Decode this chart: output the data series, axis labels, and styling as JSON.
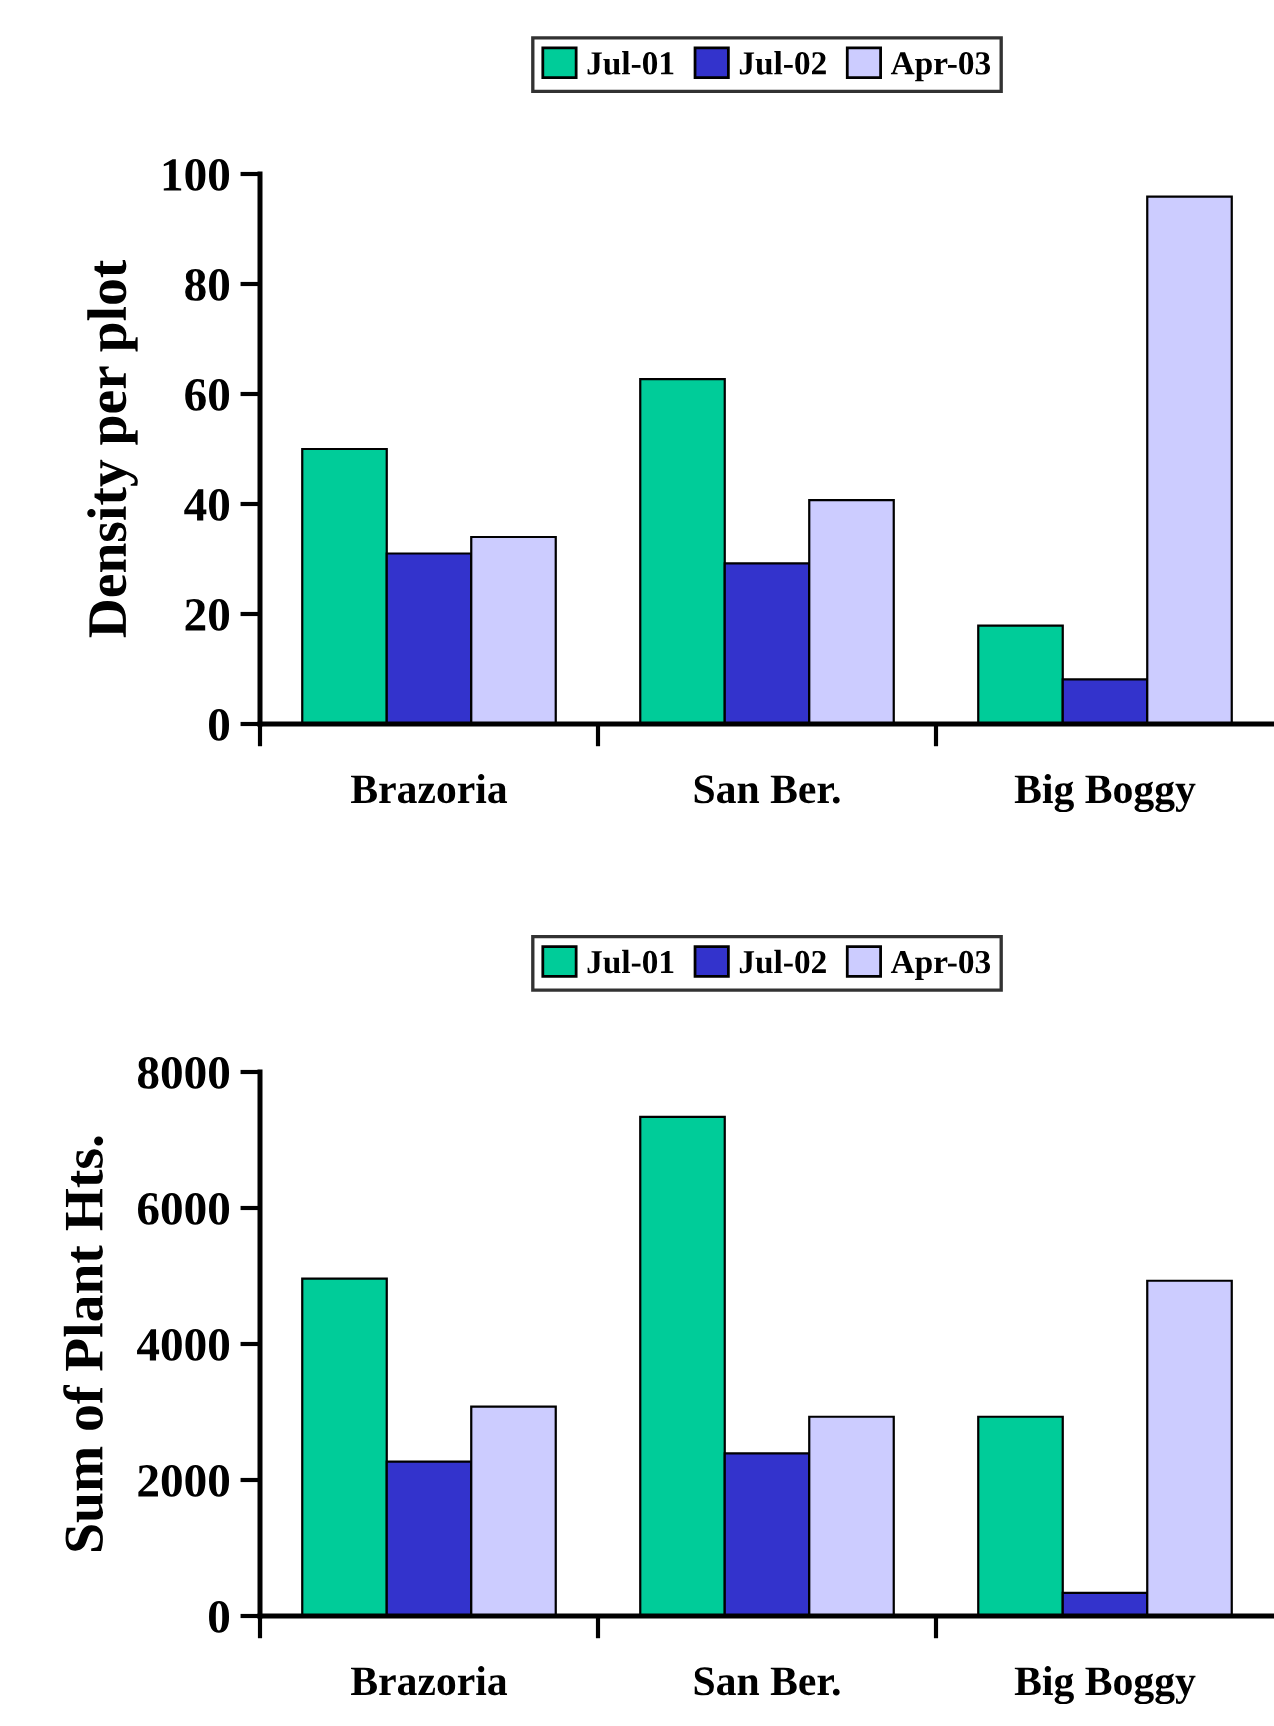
{
  "chart_data": [
    {
      "type": "bar",
      "ylabel": "Density per plot",
      "categories": [
        "Brazoria",
        "San Ber.",
        "Big Boggy"
      ],
      "series": [
        {
          "name": "Jul-01",
          "color": "#00cc99",
          "values": [
            50,
            62.7,
            17.9
          ]
        },
        {
          "name": "Jul-02",
          "color": "#3333cc",
          "values": [
            31,
            29.2,
            8.1
          ]
        },
        {
          "name": "Apr-03",
          "color": "#ccccff",
          "values": [
            34,
            40.7,
            95.9
          ]
        }
      ],
      "ylim": [
        0,
        100
      ],
      "yticks": [
        0,
        20,
        40,
        60,
        80,
        100
      ],
      "grid": false,
      "legend": "top"
    },
    {
      "type": "bar",
      "ylabel": "Sum of Plant Hts.",
      "categories": [
        "Brazoria",
        "San Ber.",
        "Big Boggy"
      ],
      "series": [
        {
          "name": "Jul-01",
          "color": "#00cc99",
          "values": [
            4960,
            7340,
            2930
          ]
        },
        {
          "name": "Jul-02",
          "color": "#3333cc",
          "values": [
            2270,
            2390,
            340
          ]
        },
        {
          "name": "Apr-03",
          "color": "#ccccff",
          "values": [
            3080,
            2930,
            4930
          ]
        }
      ],
      "ylim": [
        0,
        8000
      ],
      "yticks": [
        0,
        2000,
        4000,
        6000,
        8000
      ],
      "grid": false,
      "legend": "top"
    }
  ]
}
